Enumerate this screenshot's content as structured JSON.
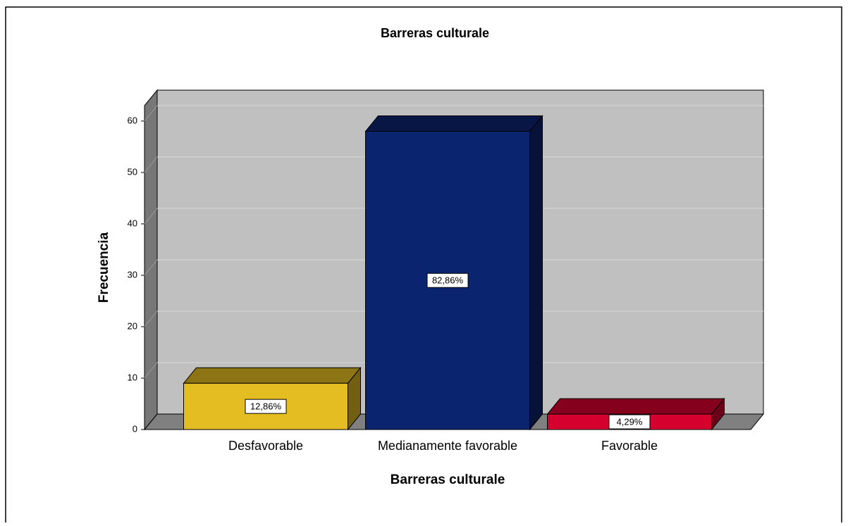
{
  "chart_data": {
    "type": "bar3d",
    "title": "Barreras culturale",
    "x_label": "Barreras culturale",
    "y_label": "Frecuencia",
    "categories": [
      "Desfavorable",
      "Medianamente favorable",
      "Favorable"
    ],
    "values": [
      9,
      58,
      3
    ],
    "percentages": [
      12.86,
      82.86,
      4.29
    ],
    "percentage_labels": [
      "12,86%",
      "82,86%",
      "4,29%"
    ],
    "colors": [
      "#e3bd22",
      "#0b2470",
      "#d6002f"
    ],
    "ylim": [
      0,
      63
    ],
    "yticks": [
      0,
      10,
      20,
      30,
      40,
      50,
      60
    ],
    "grid": true
  }
}
